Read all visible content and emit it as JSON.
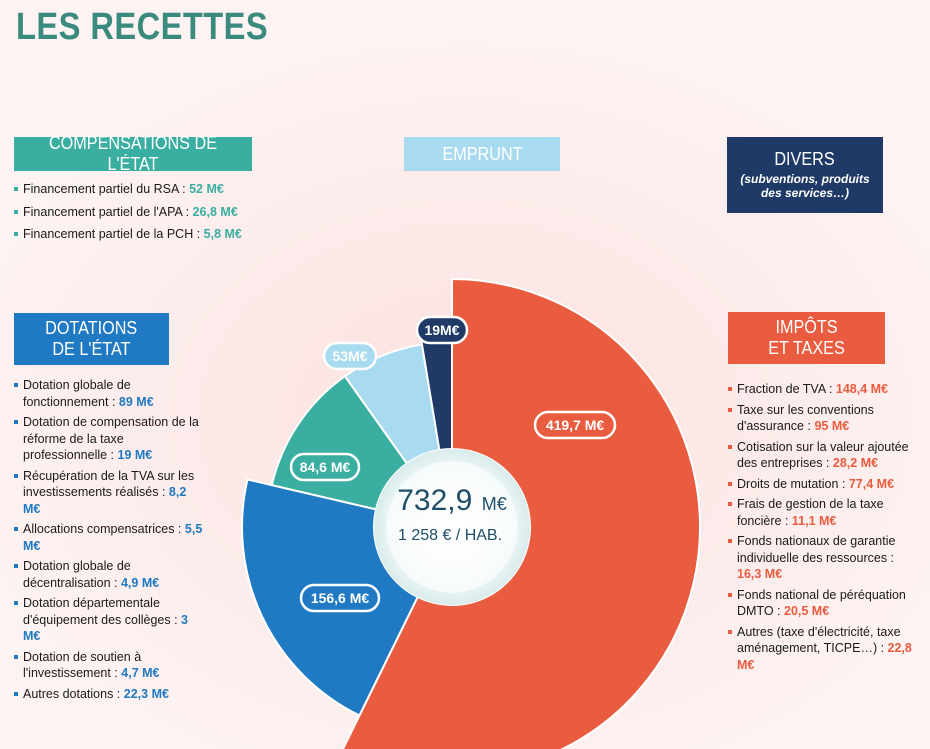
{
  "title": "LES RECETTES",
  "boxes": {
    "compensations": "COMPENSATIONS DE L'ÉTAT",
    "emprunt": "EMPRUNT",
    "divers": "DIVERS",
    "divers_sub": "(subventions, produits des services…)",
    "dotations_line1": "DOTATIONS",
    "dotations_line2": "DE L'ÉTAT",
    "impots_line1": "IMPÔTS",
    "impots_line2": "ET TAXES"
  },
  "compensations_items": [
    {
      "label": "Financement partiel du RSA : ",
      "value": "52 M€"
    },
    {
      "label": "Financement partiel de l'APA : ",
      "value": "26,8 M€"
    },
    {
      "label": "Financement partiel de la PCH : ",
      "value": "5,8 M€"
    }
  ],
  "dotations_items": [
    {
      "label": "Dotation globale de fonctionnement : ",
      "value": "89 M€"
    },
    {
      "label": "Dotation de compensation de la réforme de la taxe professionnelle : ",
      "value": "19 M€"
    },
    {
      "label": "Récupération de la TVA sur les investissements réalisés : ",
      "value": "8,2 M€"
    },
    {
      "label": "Allocations compensatrices : ",
      "value": "5,5 M€"
    },
    {
      "label": "Dotation globale de décentralisation : ",
      "value": "4,9 M€"
    },
    {
      "label": "Dotation départementale d'équipement des collèges : ",
      "value": "3 M€"
    },
    {
      "label": "Dotation de soutien à l'investissement : ",
      "value": "4,7 M€"
    },
    {
      "label": "Autres dotations : ",
      "value": "22,3 M€"
    }
  ],
  "impots_items": [
    {
      "label": "Fraction de TVA : ",
      "value": "148,4 M€"
    },
    {
      "label": "Taxe sur les conventions d'assurance : ",
      "value": "95 M€"
    },
    {
      "label": "Cotisation sur la valeur ajoutée des entreprises : ",
      "value": "28,2 M€"
    },
    {
      "label": "Droits de mutation : ",
      "value": "77,4 M€"
    },
    {
      "label": "Frais de gestion de la taxe foncière : ",
      "value": "11,1 M€"
    },
    {
      "label": "Fonds nationaux de garantie individuelle des ressources : ",
      "value": "16,3 M€"
    },
    {
      "label": "Fonds national de péréquation DMTO : ",
      "value": "20,5 M€"
    },
    {
      "label": "Autres (taxe d'électricité, taxe aménagement, TICPE…) : ",
      "value": "22,8 M€"
    }
  ],
  "chart_data": {
    "type": "pie",
    "total_label": "732,9",
    "total_unit": "M€",
    "per_capita_label": "1 258 € / HAB.",
    "slices": [
      {
        "label": "419,7 M€",
        "value": 419.7,
        "color": "#e95c3f"
      },
      {
        "label": "156,6 M€",
        "value": 156.6,
        "color": "#1f79c3"
      },
      {
        "label": "84,6 M€",
        "value": 84.6,
        "color": "#3aaea1"
      },
      {
        "label": "53M€",
        "value": 53,
        "color": "#a8dbef"
      },
      {
        "label": "19M€",
        "value": 19,
        "color": "#1f3a66"
      }
    ],
    "legend": "none"
  }
}
